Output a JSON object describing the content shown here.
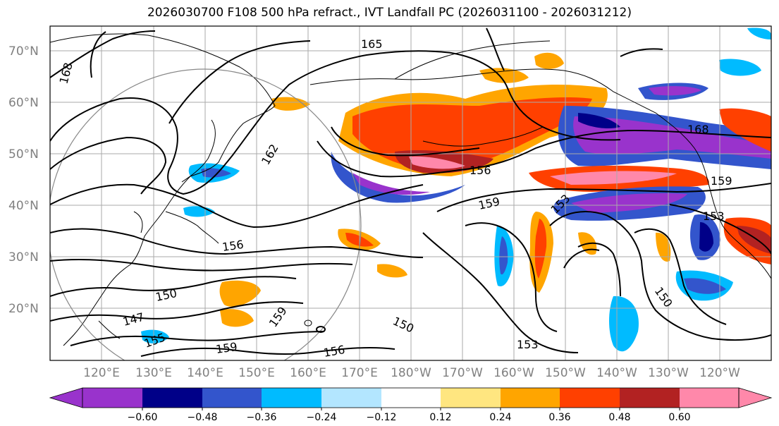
{
  "title": "2026030700 F108 500 hPa refract., IVT Landfall PC (2026031100 - 2026031212)",
  "lat_labels": [
    "70°N",
    "60°N",
    "50°N",
    "40°N",
    "30°N",
    "20°N"
  ],
  "lon_labels": [
    "120°E",
    "130°E",
    "140°E",
    "150°E",
    "160°E",
    "170°E",
    "180°W",
    "170°W",
    "160°W",
    "150°W",
    "140°W",
    "130°W",
    "120°W"
  ],
  "contour_labels": [
    "165",
    "168",
    "162",
    "156",
    "159",
    "156",
    "150",
    "147",
    "155",
    "159",
    "150",
    "156",
    "159",
    "153",
    "168",
    "159",
    "153",
    "150",
    "153",
    "156"
  ],
  "colorbar": {
    "ticks": [
      "−0.60",
      "−0.48",
      "−0.36",
      "−0.24",
      "−0.12",
      "0.12",
      "0.24",
      "0.36",
      "0.48",
      "0.60"
    ],
    "colors": [
      "#9933cc",
      "#000088",
      "#3355cc",
      "#00bbff",
      "#b3e6ff",
      "#ffffff",
      "#ffe680",
      "#ffa500",
      "#ff4000",
      "#b22222",
      "#ff88aa"
    ]
  }
}
